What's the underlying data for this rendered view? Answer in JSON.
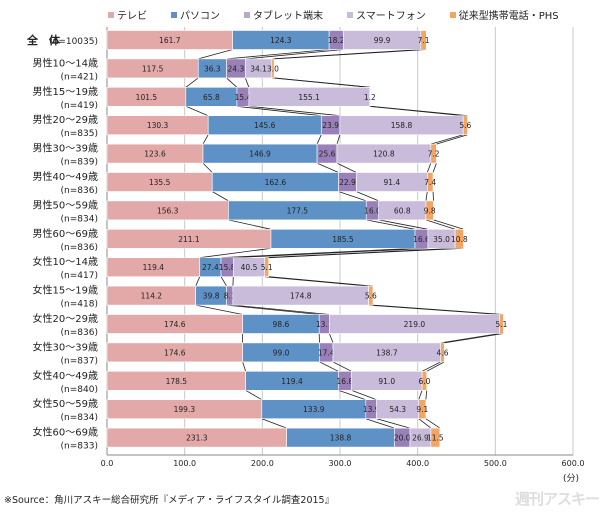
{
  "chart_data": {
    "type": "bar",
    "orientation": "horizontal-stacked",
    "title": "",
    "xlabel": "",
    "xunit": "(分)",
    "xlim": [
      0,
      600
    ],
    "xticks": [
      "0.0",
      "100.0",
      "200.0",
      "300.0",
      "400.0",
      "500.0",
      "600.0"
    ],
    "grid": true,
    "legend_position": "top",
    "categories": [
      {
        "name": "全　体",
        "n": "(n=10035)"
      },
      {
        "name": "男性10～14歳",
        "n": "(n=421)"
      },
      {
        "name": "男性15～19歳",
        "n": "(n=419)"
      },
      {
        "name": "男性20～29歳",
        "n": "(n=835)"
      },
      {
        "name": "男性30～39歳",
        "n": "(n=839)"
      },
      {
        "name": "男性40～49歳",
        "n": "(n=836)"
      },
      {
        "name": "男性50～59歳",
        "n": "(n=834)"
      },
      {
        "name": "男性60～69歳",
        "n": "(n=836)"
      },
      {
        "name": "女性10～14歳",
        "n": "(n=417)"
      },
      {
        "name": "女性15～19歳",
        "n": "(n=418)"
      },
      {
        "name": "女性20～29歳",
        "n": "(n=836)"
      },
      {
        "name": "女性30～39歳",
        "n": "(n=837)"
      },
      {
        "name": "女性40～49歳",
        "n": "(n=840)"
      },
      {
        "name": "女性50～59歳",
        "n": "(n=834)"
      },
      {
        "name": "女性60～69歳",
        "n": "(n=833)"
      }
    ],
    "series": [
      {
        "name": "テレビ",
        "color": "#e3a9a8",
        "values": [
          161.7,
          117.5,
          101.5,
          130.3,
          123.6,
          135.5,
          156.3,
          211.1,
          119.4,
          114.2,
          174.6,
          174.6,
          178.5,
          199.3,
          231.3
        ]
      },
      {
        "name": "パソコン",
        "color": "#5e92c6",
        "values": [
          124.3,
          36.3,
          65.8,
          145.6,
          146.9,
          162.6,
          177.5,
          185.5,
          27.4,
          39.8,
          98.6,
          99.0,
          119.4,
          133.9,
          138.8
        ]
      },
      {
        "name": "タブレット端末",
        "color": "#9a80b9",
        "values": [
          18.2,
          24.3,
          15.4,
          23.9,
          25.6,
          22.9,
          16.0,
          16.6,
          15.8,
          8.1,
          13.1,
          17.4,
          16.8,
          13.9,
          20.0
        ]
      },
      {
        "name": "スマートフォン",
        "color": "#c9bcdb",
        "values": [
          99.9,
          34.1,
          155.1,
          158.8,
          120.8,
          91.4,
          60.8,
          35.0,
          40.5,
          174.8,
          219.0,
          138.7,
          91.0,
          54.3,
          26.9
        ]
      },
      {
        "name": "従来型携帯電話・PHS",
        "color": "#f3a563",
        "values": [
          7.1,
          3.0,
          1.2,
          5.6,
          7.2,
          7.4,
          9.8,
          10.8,
          5.1,
          5.6,
          5.1,
          4.6,
          6.0,
          9.1,
          11.5
        ]
      }
    ]
  },
  "source": "※Source：角川アスキー総合研究所『メディア・ライフスタイル調査2015』",
  "watermark": "週刊アスキー"
}
